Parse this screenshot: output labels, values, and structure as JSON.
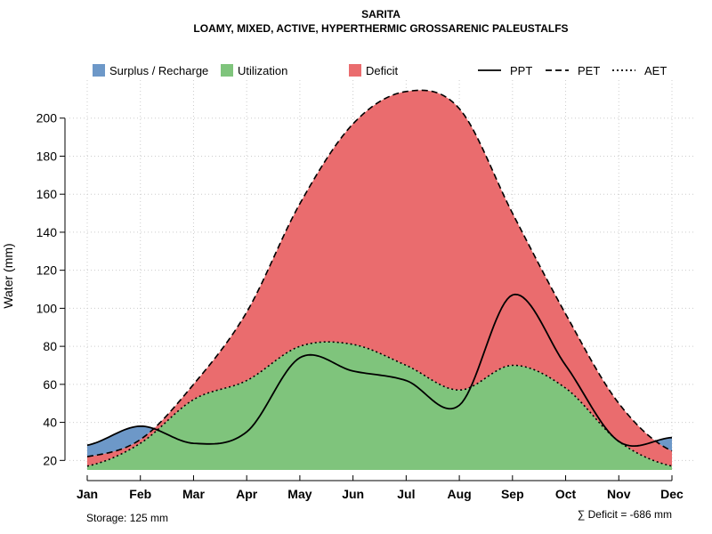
{
  "chart_data": {
    "type": "area",
    "title": "SARITA",
    "subtitle": "LOAMY, MIXED, ACTIVE, HYPERTHERMIC GROSSARENIC PALEUSTALFS",
    "xlabel": "",
    "ylabel": "Water (mm)",
    "categories": [
      "Jan",
      "Feb",
      "Mar",
      "Apr",
      "May",
      "Jun",
      "Jul",
      "Aug",
      "Sep",
      "Oct",
      "Nov",
      "Dec"
    ],
    "ylim": [
      15,
      220
    ],
    "yticks": [
      20,
      40,
      60,
      80,
      100,
      120,
      140,
      160,
      180,
      200
    ],
    "series": [
      {
        "name": "PPT",
        "line_style": "solid",
        "values": [
          28,
          38,
          29,
          35,
          74,
          67,
          62,
          49,
          107,
          70,
          30,
          32
        ]
      },
      {
        "name": "PET",
        "line_style": "dashed",
        "values": [
          22,
          31,
          60,
          98,
          155,
          197,
          214,
          205,
          150,
          97,
          50,
          25
        ]
      },
      {
        "name": "AET",
        "line_style": "dotted",
        "values": [
          17,
          29,
          52,
          62,
          80,
          81,
          70,
          57,
          70,
          58,
          30,
          17
        ]
      }
    ],
    "legend": [
      {
        "label": "Surplus / Recharge",
        "kind": "fill",
        "color": "#6d98c8"
      },
      {
        "label": "Utilization",
        "kind": "fill",
        "color": "#7fc47c"
      },
      {
        "label": "Deficit",
        "kind": "fill",
        "color": "#ea6c6e"
      },
      {
        "label": "PPT",
        "kind": "line",
        "style": "solid"
      },
      {
        "label": "PET",
        "kind": "line",
        "style": "dashed"
      },
      {
        "label": "AET",
        "kind": "line",
        "style": "dotted"
      }
    ],
    "colors": {
      "surplus": "#6d98c8",
      "utilization": "#7fc47c",
      "deficit": "#ea6c6e"
    },
    "storage_note": "Storage: 125 mm",
    "deficit_note": "∑ Deficit = -686 mm",
    "grid": true
  }
}
